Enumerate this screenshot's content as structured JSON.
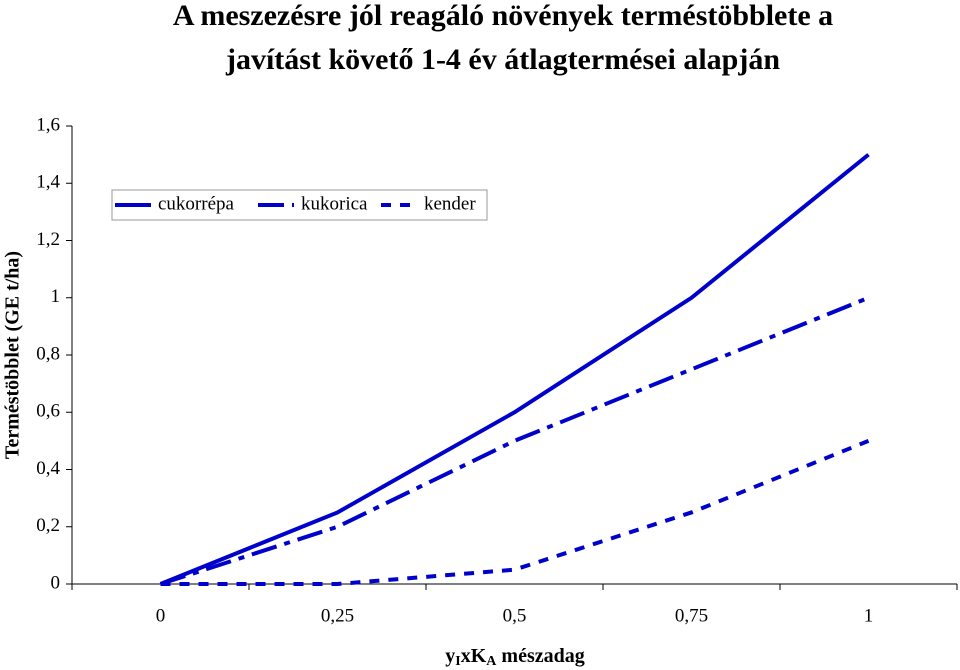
{
  "chart_data": {
    "type": "line",
    "title": [
      "A meszezésre jól reagáló növények terméstöbblete a",
      "javítást követő 1-4 év átlagtermései alapján"
    ],
    "ylabel": "Terméstöbblet (GE t/ha)",
    "xlabel": [
      "y",
      "I",
      "xK",
      "A",
      " mészadag"
    ],
    "xlabel_subscripts": [
      1,
      3
    ],
    "categories": [
      "0",
      "0,25",
      "0,5",
      "0,75",
      "1"
    ],
    "series": [
      {
        "name": "cukorrépa",
        "color": "#0000cc",
        "dash": "solid",
        "values": [
          0,
          0.25,
          0.6,
          1.0,
          1.5
        ]
      },
      {
        "name": "kukorica",
        "color": "#0000cc",
        "dash": "dashdot",
        "values": [
          0,
          0.2,
          0.5,
          0.75,
          1.0
        ]
      },
      {
        "name": "kender",
        "color": "#0000cc",
        "dash": "dotted",
        "values": [
          0,
          0,
          0.05,
          0.25,
          0.5
        ]
      }
    ],
    "ylim": [
      0,
      1.6
    ],
    "yticks": [
      0,
      {
        "value": 0.2,
        "label": "0,2"
      },
      {
        "value": 0.4,
        "label": "0,4"
      },
      {
        "value": 0.6,
        "label": "0,6"
      },
      {
        "value": 0.8,
        "label": "0,8"
      },
      1,
      {
        "value": 1.2,
        "label": "1,2"
      },
      {
        "value": 1.4,
        "label": "1,4"
      },
      {
        "value": 1.6,
        "label": "1,6"
      }
    ],
    "legend": "upper left",
    "grid": false
  }
}
